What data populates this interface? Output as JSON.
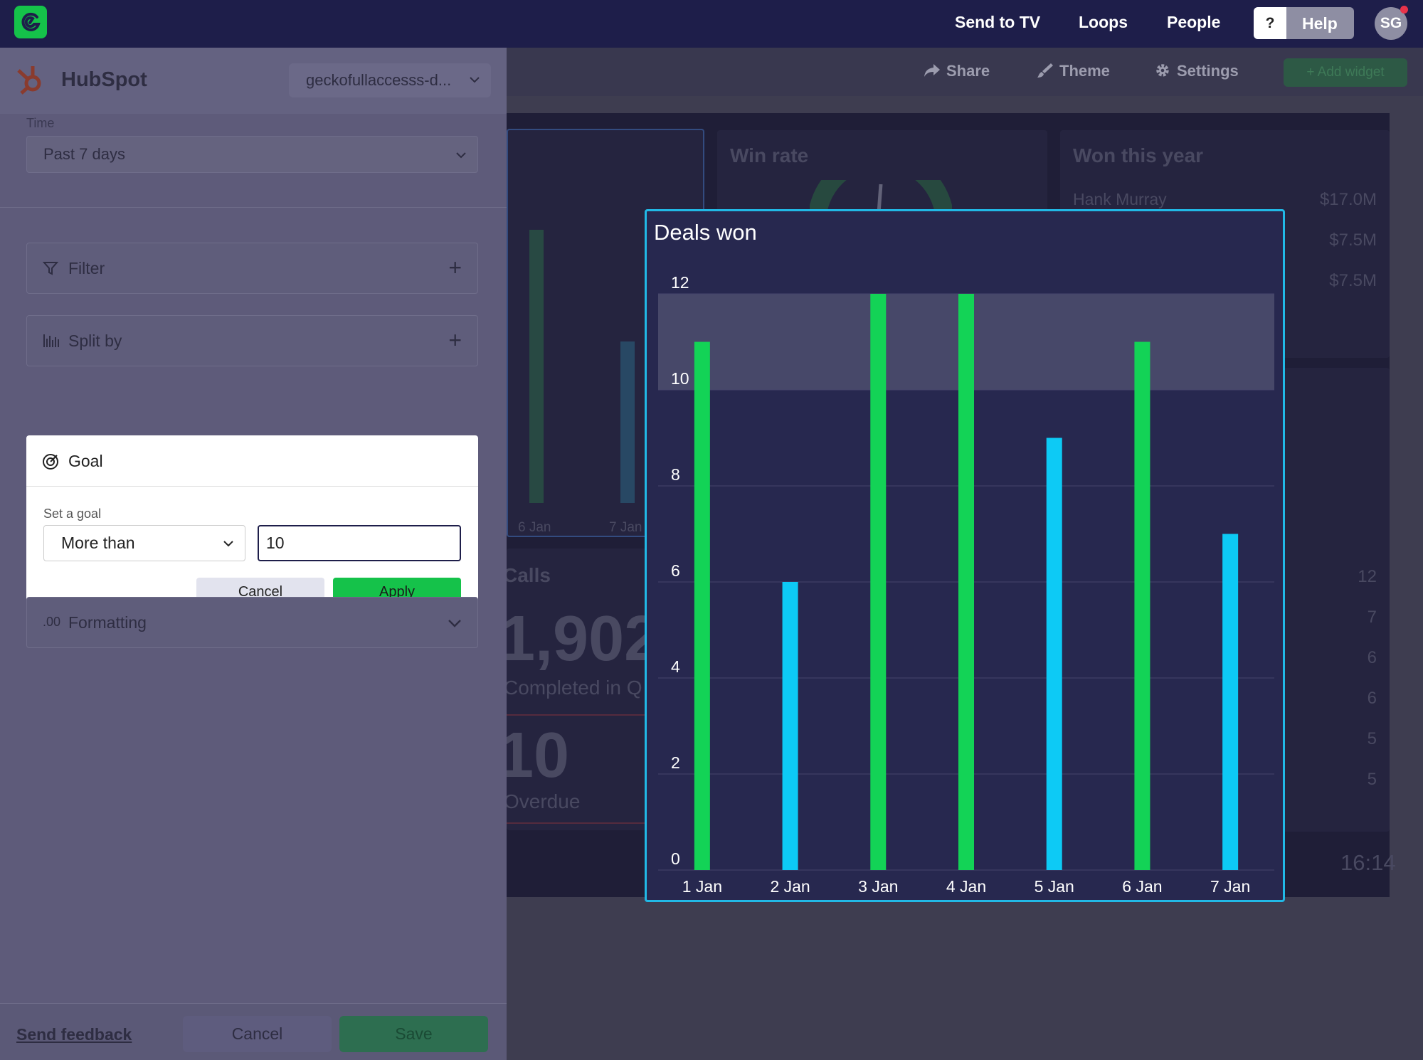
{
  "nav": {
    "links": [
      "Send to TV",
      "Loops",
      "People"
    ],
    "help_q": "?",
    "help_label": "Help",
    "avatar_initials": "SG"
  },
  "dashboard": {
    "toolbar": {
      "share": "Share",
      "theme": "Theme",
      "settings": "Settings",
      "add_widget": "Add widget"
    },
    "tiles": {
      "win_rate_title": "Win rate",
      "won_title": "Won this year",
      "won_rows": [
        {
          "name": "Hank Murray",
          "value": "$17.0M"
        },
        {
          "name": "",
          "value": "$7.5M"
        },
        {
          "name": "",
          "value": "$7.5M"
        }
      ],
      "right_list_values": [
        "12",
        "7",
        "6",
        "6",
        "5",
        "5"
      ],
      "bg_axis_labels": [
        "6 Jan",
        "7 Jan"
      ],
      "calls_title": "Calls",
      "calls_value": "1,902",
      "calls_sub": "Completed in Q",
      "overdue_value": "10",
      "overdue_label": "Overdue",
      "clock": "16:14"
    }
  },
  "panel": {
    "source_name": "HubSpot",
    "account": "geckofullaccesss-d...",
    "time_label": "Time",
    "time_value": "Past 7 days",
    "filter_label": "Filter",
    "split_label": "Split by",
    "goal": {
      "title": "Goal",
      "set_label": "Set a goal",
      "comparator": "More than",
      "value": "10",
      "cancel": "Cancel",
      "apply": "Apply"
    },
    "formatting_icon": ".00",
    "formatting_label": "Formatting",
    "footer": {
      "feedback": "Send feedback",
      "cancel": "Cancel",
      "save": "Save"
    }
  },
  "chart_data": {
    "type": "bar",
    "title": "Deals won",
    "categories": [
      "1 Jan",
      "2 Jan",
      "3 Jan",
      "4 Jan",
      "5 Jan",
      "6 Jan",
      "7 Jan"
    ],
    "values": [
      11,
      6,
      12,
      12,
      9,
      11,
      7
    ],
    "ylim": [
      0,
      12
    ],
    "yticks": [
      0,
      2,
      4,
      6,
      8,
      10,
      12
    ],
    "goal": {
      "comparator": "More than",
      "value": 10,
      "band": [
        10,
        12
      ]
    },
    "colors": {
      "meets_goal": "#13d356",
      "below_goal": "#0dcaf5",
      "goal_band": "#474869",
      "grid": "#44456b"
    }
  }
}
